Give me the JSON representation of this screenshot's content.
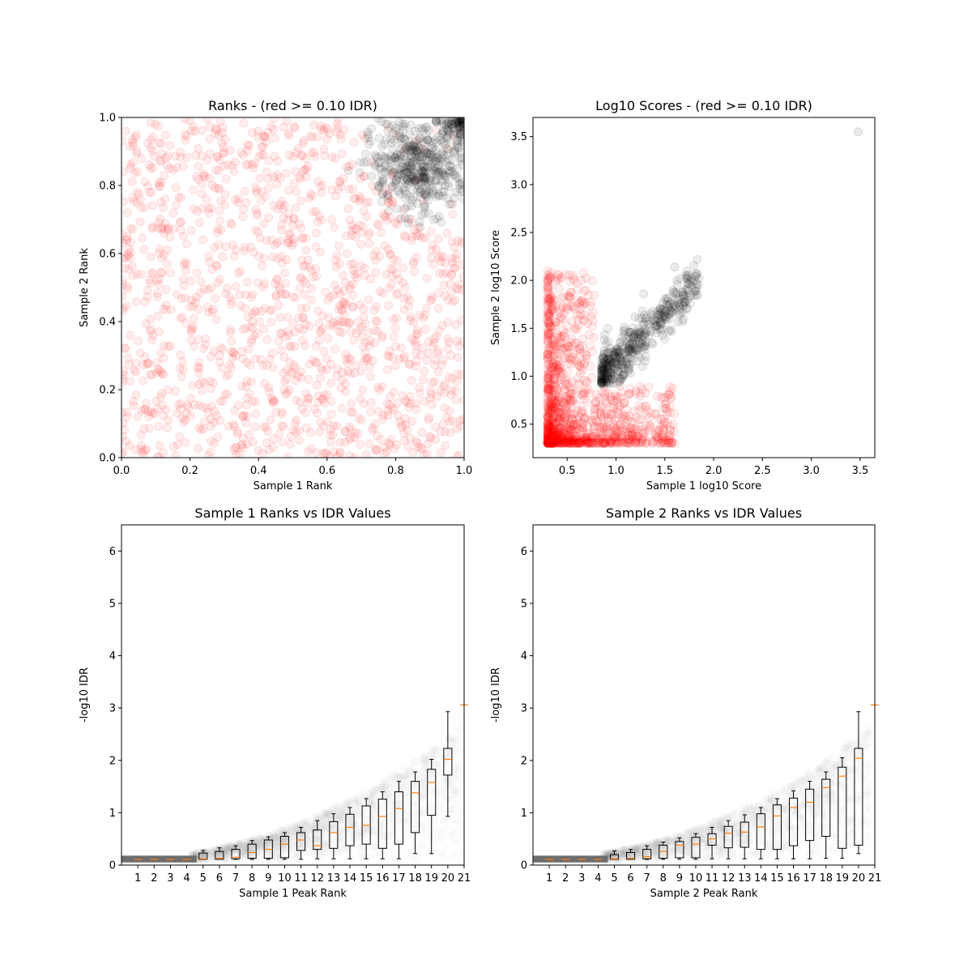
{
  "chart_data": [
    {
      "type": "scatter",
      "title": "Ranks - (red >= 0.10 IDR)",
      "xlabel": "Sample 1 Rank",
      "ylabel": "Sample 2 Rank",
      "xlim": [
        0,
        1
      ],
      "ylim": [
        0,
        1
      ],
      "xticks": [
        "0.0",
        "0.2",
        "0.4",
        "0.6",
        "0.8",
        "1.0"
      ],
      "yticks": [
        "0.0",
        "0.2",
        "0.4",
        "0.6",
        "0.8",
        "1.0"
      ],
      "grid": false,
      "series": [
        {
          "color": "#ff0000",
          "distribution": "uniform",
          "x_range": [
            0,
            1
          ],
          "y_range": [
            0,
            1
          ],
          "approx_points": 1500
        },
        {
          "color": "#000000",
          "distribution": "cluster",
          "center": [
            0.86,
            0.86
          ],
          "spread": [
            0.07,
            0.07
          ],
          "min_sum": 1.5,
          "approx_points": 450
        }
      ]
    },
    {
      "type": "scatter",
      "title": "Log10 Scores - (red >= 0.10 IDR)",
      "xlabel": "Sample 1 log10 Score",
      "ylabel": "Sample 2 log10 Score",
      "xlim": [
        0.15,
        3.65
      ],
      "ylim": [
        0.15,
        3.7
      ],
      "xticks": [
        "0.5",
        "1.0",
        "1.5",
        "2.0",
        "2.5",
        "3.0",
        "3.5"
      ],
      "yticks": [
        "0.5",
        "1.0",
        "1.5",
        "2.0",
        "2.5",
        "3.0",
        "3.5"
      ],
      "grid": false,
      "series": [
        {
          "color": "#ff0000",
          "distribution": "skewed",
          "x_min": 0.3,
          "y_min": 0.3,
          "x_max": 1.6,
          "y_max": 2.1,
          "approx_points": 1500
        },
        {
          "color": "#000000",
          "distribution": "diagonal",
          "x_range": [
            0.85,
            1.85
          ],
          "y_offset": 0.15,
          "approx_points": 450
        },
        {
          "color": "#000000",
          "points": [
            [
              3.48,
              3.55
            ],
            [
              1.83,
              2.07
            ],
            [
              1.6,
              2.14
            ]
          ]
        }
      ]
    },
    {
      "type": "box",
      "title": "Sample 1 Ranks vs IDR Values",
      "xlabel": "Sample 1 Peak Rank",
      "ylabel": "-log10 IDR",
      "xlim": [
        0,
        21
      ],
      "ylim": [
        0,
        6.5
      ],
      "xticks": [
        "1",
        "2",
        "3",
        "4",
        "5",
        "6",
        "7",
        "8",
        "9",
        "10",
        "11",
        "12",
        "13",
        "14",
        "15",
        "16",
        "17",
        "18",
        "19",
        "20",
        "21"
      ],
      "yticks": [
        "0",
        "1",
        "2",
        "3",
        "4",
        "5",
        "6"
      ],
      "boxes": [
        {
          "pos": 1,
          "wl": 0.11,
          "q1": 0.11,
          "med": 0.11,
          "q3": 0.11,
          "wh": 0.11
        },
        {
          "pos": 2,
          "wl": 0.11,
          "q1": 0.11,
          "med": 0.11,
          "q3": 0.11,
          "wh": 0.11
        },
        {
          "pos": 3,
          "wl": 0.11,
          "q1": 0.11,
          "med": 0.11,
          "q3": 0.11,
          "wh": 0.11
        },
        {
          "pos": 4,
          "wl": 0.11,
          "q1": 0.11,
          "med": 0.11,
          "q3": 0.11,
          "wh": 0.11
        },
        {
          "pos": 5,
          "wl": 0.11,
          "q1": 0.11,
          "med": 0.12,
          "q3": 0.23,
          "wh": 0.28
        },
        {
          "pos": 6,
          "wl": 0.11,
          "q1": 0.11,
          "med": 0.13,
          "q3": 0.26,
          "wh": 0.33
        },
        {
          "pos": 7,
          "wl": 0.11,
          "q1": 0.12,
          "med": 0.15,
          "q3": 0.3,
          "wh": 0.37
        },
        {
          "pos": 8,
          "wl": 0.11,
          "q1": 0.13,
          "med": 0.24,
          "q3": 0.4,
          "wh": 0.47
        },
        {
          "pos": 9,
          "wl": 0.11,
          "q1": 0.13,
          "med": 0.3,
          "q3": 0.48,
          "wh": 0.54
        },
        {
          "pos": 10,
          "wl": 0.11,
          "q1": 0.14,
          "med": 0.4,
          "q3": 0.55,
          "wh": 0.62
        },
        {
          "pos": 11,
          "wl": 0.11,
          "q1": 0.28,
          "med": 0.48,
          "q3": 0.62,
          "wh": 0.72
        },
        {
          "pos": 12,
          "wl": 0.12,
          "q1": 0.3,
          "med": 0.37,
          "q3": 0.67,
          "wh": 0.85
        },
        {
          "pos": 13,
          "wl": 0.12,
          "q1": 0.32,
          "med": 0.62,
          "q3": 0.83,
          "wh": 0.98
        },
        {
          "pos": 14,
          "wl": 0.12,
          "q1": 0.37,
          "med": 0.72,
          "q3": 0.97,
          "wh": 1.1
        },
        {
          "pos": 15,
          "wl": 0.12,
          "q1": 0.4,
          "med": 0.76,
          "q3": 1.13,
          "wh": 1.27
        },
        {
          "pos": 16,
          "wl": 0.12,
          "q1": 0.32,
          "med": 0.93,
          "q3": 1.26,
          "wh": 1.4
        },
        {
          "pos": 17,
          "wl": 0.12,
          "q1": 0.4,
          "med": 1.08,
          "q3": 1.4,
          "wh": 1.6
        },
        {
          "pos": 18,
          "wl": 0.22,
          "q1": 0.62,
          "med": 1.38,
          "q3": 1.6,
          "wh": 1.78
        },
        {
          "pos": 19,
          "wl": 0.22,
          "q1": 0.95,
          "med": 1.58,
          "q3": 1.83,
          "wh": 2.02
        },
        {
          "pos": 20,
          "wl": 0.93,
          "q1": 1.72,
          "med": 2.02,
          "q3": 2.23,
          "wh": 2.93
        },
        {
          "pos": 21,
          "wl": 3.06,
          "q1": 3.06,
          "med": 3.06,
          "q3": 3.06,
          "wh": 3.06
        }
      ]
    },
    {
      "type": "box",
      "title": "Sample 2 Ranks vs IDR Values",
      "xlabel": "Sample 2 Peak Rank",
      "ylabel": "-log10 IDR",
      "xlim": [
        0,
        21
      ],
      "ylim": [
        0,
        6.5
      ],
      "xticks": [
        "1",
        "2",
        "3",
        "4",
        "5",
        "6",
        "7",
        "8",
        "9",
        "10",
        "11",
        "12",
        "13",
        "14",
        "15",
        "16",
        "17",
        "18",
        "19",
        "20",
        "21"
      ],
      "yticks": [
        "0",
        "1",
        "2",
        "3",
        "4",
        "5",
        "6"
      ],
      "boxes": [
        {
          "pos": 1,
          "wl": 0.11,
          "q1": 0.11,
          "med": 0.11,
          "q3": 0.11,
          "wh": 0.11
        },
        {
          "pos": 2,
          "wl": 0.11,
          "q1": 0.11,
          "med": 0.11,
          "q3": 0.11,
          "wh": 0.11
        },
        {
          "pos": 3,
          "wl": 0.11,
          "q1": 0.11,
          "med": 0.11,
          "q3": 0.11,
          "wh": 0.11
        },
        {
          "pos": 4,
          "wl": 0.11,
          "q1": 0.11,
          "med": 0.11,
          "q3": 0.11,
          "wh": 0.11
        },
        {
          "pos": 5,
          "wl": 0.11,
          "q1": 0.11,
          "med": 0.12,
          "q3": 0.2,
          "wh": 0.27
        },
        {
          "pos": 6,
          "wl": 0.11,
          "q1": 0.11,
          "med": 0.13,
          "q3": 0.24,
          "wh": 0.3
        },
        {
          "pos": 7,
          "wl": 0.11,
          "q1": 0.12,
          "med": 0.16,
          "q3": 0.3,
          "wh": 0.37
        },
        {
          "pos": 8,
          "wl": 0.11,
          "q1": 0.13,
          "med": 0.26,
          "q3": 0.38,
          "wh": 0.44
        },
        {
          "pos": 9,
          "wl": 0.11,
          "q1": 0.14,
          "med": 0.38,
          "q3": 0.45,
          "wh": 0.52
        },
        {
          "pos": 10,
          "wl": 0.11,
          "q1": 0.14,
          "med": 0.4,
          "q3": 0.53,
          "wh": 0.6
        },
        {
          "pos": 11,
          "wl": 0.12,
          "q1": 0.38,
          "med": 0.5,
          "q3": 0.6,
          "wh": 0.72
        },
        {
          "pos": 12,
          "wl": 0.12,
          "q1": 0.33,
          "med": 0.61,
          "q3": 0.74,
          "wh": 0.85
        },
        {
          "pos": 13,
          "wl": 0.12,
          "q1": 0.34,
          "med": 0.63,
          "q3": 0.82,
          "wh": 0.96
        },
        {
          "pos": 14,
          "wl": 0.12,
          "q1": 0.3,
          "med": 0.73,
          "q3": 0.98,
          "wh": 1.1
        },
        {
          "pos": 15,
          "wl": 0.12,
          "q1": 0.3,
          "med": 0.94,
          "q3": 1.15,
          "wh": 1.27
        },
        {
          "pos": 16,
          "wl": 0.12,
          "q1": 0.37,
          "med": 1.1,
          "q3": 1.28,
          "wh": 1.42
        },
        {
          "pos": 17,
          "wl": 0.12,
          "q1": 0.47,
          "med": 1.2,
          "q3": 1.45,
          "wh": 1.6
        },
        {
          "pos": 18,
          "wl": 0.13,
          "q1": 0.55,
          "med": 1.48,
          "q3": 1.64,
          "wh": 1.78
        },
        {
          "pos": 19,
          "wl": 0.13,
          "q1": 0.32,
          "med": 1.7,
          "q3": 1.87,
          "wh": 2.05
        },
        {
          "pos": 20,
          "wl": 0.22,
          "q1": 0.38,
          "med": 2.04,
          "q3": 2.23,
          "wh": 2.93
        },
        {
          "pos": 21,
          "wl": 3.06,
          "q1": 3.06,
          "med": 3.06,
          "q3": 3.06,
          "wh": 3.06
        }
      ]
    }
  ]
}
